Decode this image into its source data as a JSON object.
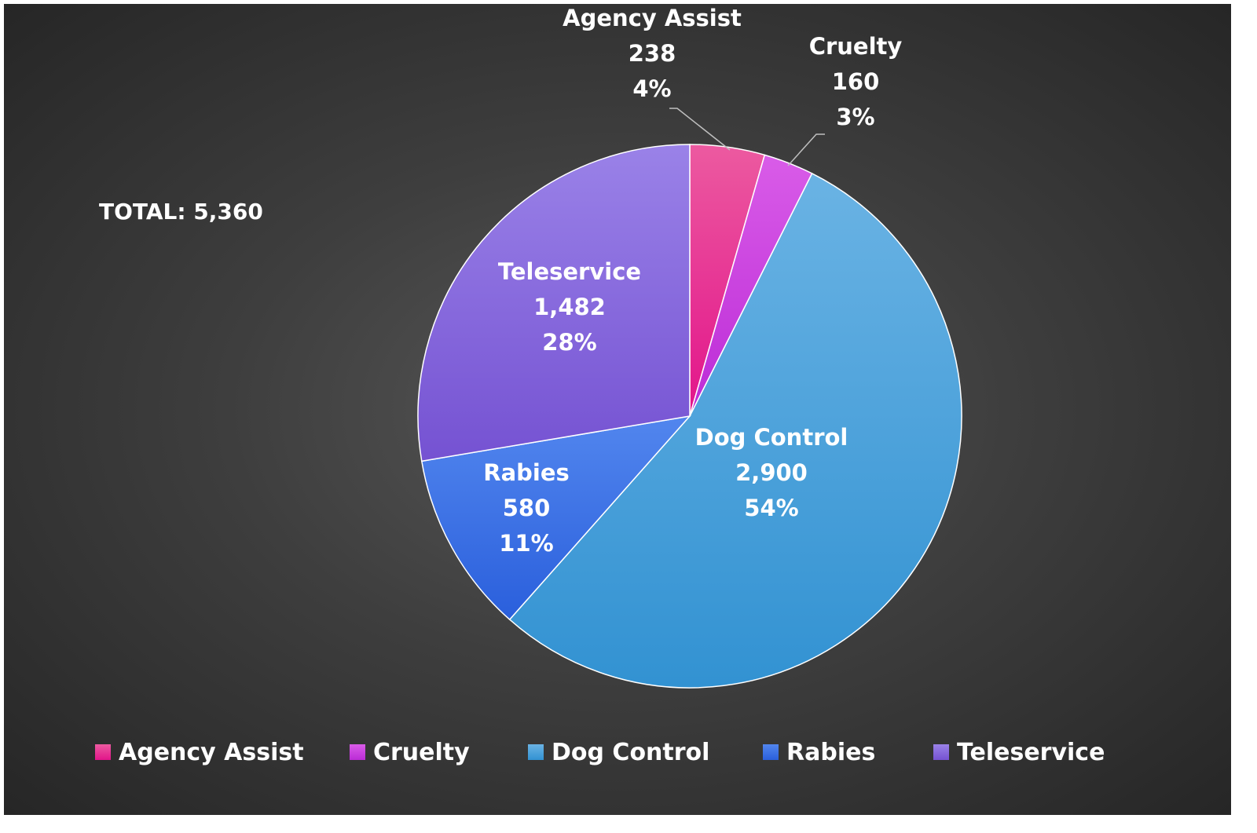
{
  "chart_data": {
    "type": "pie",
    "title": "",
    "total_label": "TOTAL: 5,360",
    "slices": [
      {
        "label": "Agency Assist",
        "value": 238,
        "value_text": "238",
        "percent_text": "4%",
        "color_light": "#ec5aa0",
        "color_dark": "#e2148a"
      },
      {
        "label": "Cruelty",
        "value": 160,
        "value_text": "160",
        "percent_text": "3%",
        "color_light": "#d95ce8",
        "color_dark": "#bb2bd6"
      },
      {
        "label": "Dog Control",
        "value": 2900,
        "value_text": "2,900",
        "percent_text": "54%",
        "color_light": "#6ab3e4",
        "color_dark": "#3292d2"
      },
      {
        "label": "Rabies",
        "value": 580,
        "value_text": "580",
        "percent_text": "11%",
        "color_light": "#5286ee",
        "color_dark": "#2a5fdc"
      },
      {
        "label": "Teleservice",
        "value": 1482,
        "value_text": "1,482",
        "percent_text": "28%",
        "color_light": "#9a82e8",
        "color_dark": "#7552d2"
      }
    ],
    "start_angle_deg": 0,
    "direction": "clockwise",
    "legend_position": "bottom",
    "background": "#3e3e3e"
  }
}
